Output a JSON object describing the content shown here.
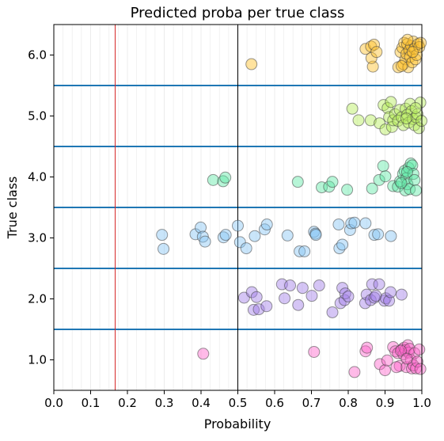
{
  "chart_data": {
    "type": "scatter",
    "title": "Predicted proba per true class",
    "xlabel": "Probability",
    "ylabel": "True class",
    "xlim": [
      0.0,
      1.0
    ],
    "ylim": [
      0.5,
      6.5
    ],
    "xticks": [
      "0.0",
      "0.1",
      "0.2",
      "0.3",
      "0.4",
      "0.5",
      "0.6",
      "0.7",
      "0.8",
      "0.9",
      "1.0"
    ],
    "yticks": [
      "1.0",
      "2.0",
      "3.0",
      "4.0",
      "5.0",
      "6.0"
    ],
    "ytick_values": [
      1.0,
      2.0,
      3.0,
      4.0,
      5.0,
      6.0
    ],
    "class_separators": [
      1.5,
      2.5,
      3.5,
      4.5,
      5.5
    ],
    "vertical_lines": [
      {
        "x": 0.1667,
        "color": "#d62728"
      },
      {
        "x": 0.5,
        "color": "#000000"
      }
    ],
    "grid_x_minor": true,
    "colors": {
      "separator": "#1f77b4",
      "class_1": "#ff66cc",
      "class_2": "#a17fe8",
      "class_3": "#88c6f4",
      "class_4": "#5fe8a6",
      "class_5": "#b5ee59",
      "class_6": "#ffc12b"
    },
    "series": [
      {
        "class": 1,
        "color": "#ff66cc",
        "points": [
          [
            0.406,
            1.1
          ],
          [
            0.707,
            1.13
          ],
          [
            0.847,
            1.14
          ],
          [
            0.851,
            1.2
          ],
          [
            0.817,
            0.8
          ],
          [
            0.886,
            0.93
          ],
          [
            0.9,
            0.83
          ],
          [
            0.906,
            0.99
          ],
          [
            0.922,
            1.21
          ],
          [
            0.928,
            1.14
          ],
          [
            0.935,
            1.11
          ],
          [
            0.94,
            0.9
          ],
          [
            0.946,
            1.17
          ],
          [
            0.95,
            1.09
          ],
          [
            0.952,
            1.2
          ],
          [
            0.955,
            1.16
          ],
          [
            0.958,
            0.88
          ],
          [
            0.962,
            1.24
          ],
          [
            0.964,
            1.12
          ],
          [
            0.967,
            1.18
          ],
          [
            0.97,
            1.0
          ],
          [
            0.973,
            0.86
          ],
          [
            0.977,
            0.91
          ],
          [
            0.98,
            1.11
          ],
          [
            0.984,
            0.86
          ],
          [
            0.988,
            0.97
          ],
          [
            0.993,
            1.17
          ],
          [
            0.996,
            0.85
          ],
          [
            0.943,
            1.15
          ],
          [
            0.959,
            1.02
          ],
          [
            0.931,
            0.88
          ]
        ]
      },
      {
        "class": 2,
        "color": "#a17fe8",
        "points": [
          [
            0.517,
            2.02
          ],
          [
            0.538,
            2.11
          ],
          [
            0.543,
            1.82
          ],
          [
            0.551,
            2.03
          ],
          [
            0.557,
            1.83
          ],
          [
            0.578,
            1.88
          ],
          [
            0.62,
            2.24
          ],
          [
            0.627,
            2.01
          ],
          [
            0.642,
            2.22
          ],
          [
            0.664,
            1.9
          ],
          [
            0.676,
            2.18
          ],
          [
            0.701,
            2.05
          ],
          [
            0.721,
            2.22
          ],
          [
            0.757,
            1.78
          ],
          [
            0.779,
            1.93
          ],
          [
            0.784,
            2.18
          ],
          [
            0.79,
            1.98
          ],
          [
            0.792,
            2.09
          ],
          [
            0.8,
            2.04
          ],
          [
            0.846,
            1.93
          ],
          [
            0.85,
            2.07
          ],
          [
            0.861,
            1.98
          ],
          [
            0.865,
            2.24
          ],
          [
            0.871,
            2.02
          ],
          [
            0.884,
            2.24
          ],
          [
            0.898,
            1.97
          ],
          [
            0.902,
            2.01
          ],
          [
            0.911,
            1.97
          ],
          [
            0.915,
            2.11
          ],
          [
            0.945,
            2.07
          ],
          [
            0.875,
            2.05
          ]
        ]
      },
      {
        "class": 3,
        "color": "#88c6f4",
        "points": [
          [
            0.294,
            3.05
          ],
          [
            0.298,
            2.82
          ],
          [
            0.385,
            3.06
          ],
          [
            0.399,
            3.17
          ],
          [
            0.405,
            3.02
          ],
          [
            0.411,
            2.94
          ],
          [
            0.461,
            3.01
          ],
          [
            0.467,
            3.05
          ],
          [
            0.5,
            3.2
          ],
          [
            0.506,
            2.93
          ],
          [
            0.523,
            2.83
          ],
          [
            0.546,
            3.03
          ],
          [
            0.573,
            3.14
          ],
          [
            0.579,
            3.22
          ],
          [
            0.635,
            3.04
          ],
          [
            0.668,
            2.78
          ],
          [
            0.681,
            2.78
          ],
          [
            0.707,
            3.1
          ],
          [
            0.711,
            3.07
          ],
          [
            0.774,
            3.22
          ],
          [
            0.776,
            2.83
          ],
          [
            0.784,
            2.89
          ],
          [
            0.805,
            3.13
          ],
          [
            0.808,
            3.24
          ],
          [
            0.817,
            3.25
          ],
          [
            0.847,
            3.24
          ],
          [
            0.871,
            3.05
          ],
          [
            0.881,
            3.06
          ],
          [
            0.916,
            3.03
          ],
          [
            0.712,
            3.05
          ]
        ]
      },
      {
        "class": 4,
        "color": "#5fe8a6",
        "points": [
          [
            0.433,
            3.95
          ],
          [
            0.46,
            3.93
          ],
          [
            0.466,
            3.99
          ],
          [
            0.663,
            3.92
          ],
          [
            0.728,
            3.83
          ],
          [
            0.748,
            3.84
          ],
          [
            0.757,
            3.92
          ],
          [
            0.797,
            3.79
          ],
          [
            0.865,
            3.81
          ],
          [
            0.884,
            3.95
          ],
          [
            0.895,
            4.18
          ],
          [
            0.901,
            4.01
          ],
          [
            0.922,
            3.85
          ],
          [
            0.935,
            3.84
          ],
          [
            0.941,
            3.93
          ],
          [
            0.949,
            4.05
          ],
          [
            0.953,
            4.1
          ],
          [
            0.955,
            3.78
          ],
          [
            0.958,
            3.98
          ],
          [
            0.961,
            3.88
          ],
          [
            0.964,
            4.15
          ],
          [
            0.967,
            3.8
          ],
          [
            0.97,
            4.22
          ],
          [
            0.974,
            4.19
          ],
          [
            0.977,
            4.05
          ],
          [
            0.98,
            3.95
          ],
          [
            0.984,
            3.78
          ],
          [
            0.96,
            4.08
          ],
          [
            0.944,
            3.9
          ]
        ]
      },
      {
        "class": 5,
        "color": "#b5ee59",
        "points": [
          [
            0.811,
            5.12
          ],
          [
            0.828,
            4.93
          ],
          [
            0.861,
            4.93
          ],
          [
            0.885,
            4.88
          ],
          [
            0.896,
            5.18
          ],
          [
            0.901,
            4.78
          ],
          [
            0.907,
            5.13
          ],
          [
            0.911,
            4.98
          ],
          [
            0.916,
            5.23
          ],
          [
            0.919,
            4.82
          ],
          [
            0.922,
            4.93
          ],
          [
            0.927,
            5.03
          ],
          [
            0.935,
            4.92
          ],
          [
            0.94,
            5.1
          ],
          [
            0.945,
            4.98
          ],
          [
            0.95,
            4.85
          ],
          [
            0.956,
            5.12
          ],
          [
            0.96,
            5.02
          ],
          [
            0.964,
            4.89
          ],
          [
            0.968,
            5.2
          ],
          [
            0.972,
            5.08
          ],
          [
            0.976,
            4.95
          ],
          [
            0.98,
            4.85
          ],
          [
            0.984,
            4.98
          ],
          [
            0.988,
            5.03
          ],
          [
            0.992,
            4.8
          ],
          [
            0.996,
            5.22
          ],
          [
            0.999,
            4.92
          ],
          [
            0.983,
            5.13
          ],
          [
            0.958,
            4.96
          ]
        ]
      },
      {
        "class": 6,
        "color": "#ffc12b",
        "points": [
          [
            0.537,
            5.85
          ],
          [
            0.847,
            6.1
          ],
          [
            0.862,
            6.14
          ],
          [
            0.867,
            5.81
          ],
          [
            0.87,
            6.17
          ],
          [
            0.863,
            5.95
          ],
          [
            0.877,
            6.05
          ],
          [
            0.936,
            5.8
          ],
          [
            0.942,
            6.05
          ],
          [
            0.947,
            6.12
          ],
          [
            0.95,
            5.85
          ],
          [
            0.952,
            6.2
          ],
          [
            0.955,
            5.93
          ],
          [
            0.958,
            6.02
          ],
          [
            0.96,
            6.18
          ],
          [
            0.963,
            5.8
          ],
          [
            0.966,
            6.08
          ],
          [
            0.968,
            5.97
          ],
          [
            0.971,
            6.15
          ],
          [
            0.974,
            5.88
          ],
          [
            0.977,
            6.22
          ],
          [
            0.98,
            6.1
          ],
          [
            0.983,
            5.93
          ],
          [
            0.986,
            6.0
          ],
          [
            0.99,
            6.18
          ],
          [
            0.993,
            6.13
          ],
          [
            0.997,
            6.2
          ],
          [
            0.945,
            5.82
          ],
          [
            0.961,
            6.25
          ],
          [
            0.975,
            6.05
          ]
        ]
      }
    ]
  }
}
